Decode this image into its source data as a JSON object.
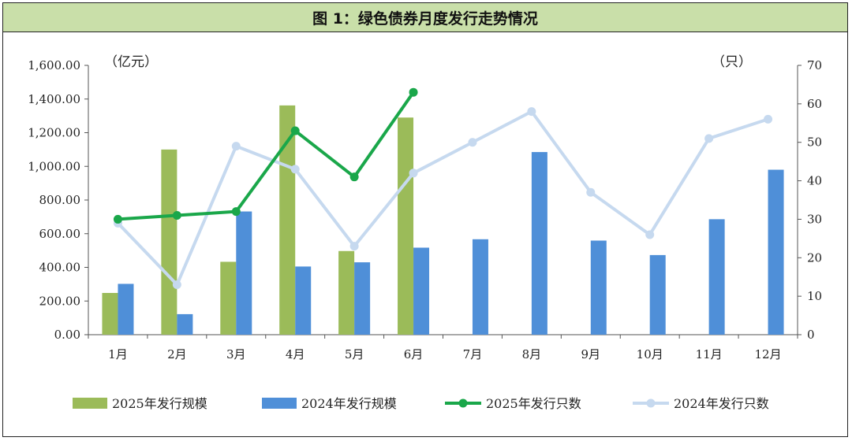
{
  "title": "图 1：绿色债券月度发行走势情况",
  "chart_data": {
    "type": "bar",
    "title": "图 1：绿色债券月度发行走势情况",
    "categories": [
      "1月",
      "2月",
      "3月",
      "4月",
      "5月",
      "6月",
      "7月",
      "8月",
      "9月",
      "10月",
      "11月",
      "12月"
    ],
    "y_left": {
      "label": "（亿元）",
      "min": 0,
      "max": 1600,
      "step": 200,
      "ticks": [
        "0.00",
        "200.00",
        "400.00",
        "600.00",
        "800.00",
        "1,000.00",
        "1,200.00",
        "1,400.00",
        "1,600.00"
      ]
    },
    "y_right": {
      "label": "（只）",
      "min": 0,
      "max": 70,
      "step": 10,
      "ticks": [
        "0",
        "10",
        "20",
        "30",
        "40",
        "50",
        "60",
        "70"
      ]
    },
    "series": [
      {
        "name": "2025年发行规模",
        "type": "bar",
        "axis": "left",
        "color": "#9bbb59",
        "values": [
          248,
          1100,
          433,
          1362,
          497,
          1290,
          null,
          null,
          null,
          null,
          null,
          null
        ]
      },
      {
        "name": "2024年发行规模",
        "type": "bar",
        "axis": "left",
        "color": "#4f8fd8",
        "values": [
          302,
          122,
          732,
          405,
          430,
          517,
          567,
          1085,
          559,
          473,
          686,
          980
        ]
      },
      {
        "name": "2025年发行只数",
        "type": "line",
        "axis": "right",
        "color": "#1aa74a",
        "values": [
          30,
          31,
          32,
          53,
          41,
          63,
          null,
          null,
          null,
          null,
          null,
          null
        ]
      },
      {
        "name": "2024年发行只数",
        "type": "line",
        "axis": "right",
        "color": "#c6d9ef",
        "values": [
          29,
          13,
          49,
          43,
          23,
          42,
          50,
          58,
          37,
          26,
          51,
          56
        ]
      }
    ],
    "legend_position": "bottom",
    "grid": false
  }
}
